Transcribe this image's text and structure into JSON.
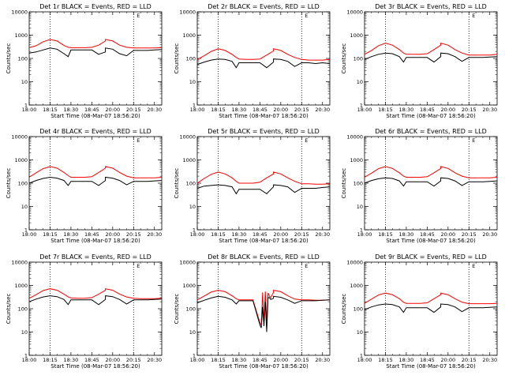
{
  "figure": {
    "panel_titles": [
      "Det 1r BLACK = Events, RED = LLD",
      "Det 2r BLACK = Events, RED = LLD",
      "Det 3r BLACK = Events, RED = LLD",
      "Det 4r BLACK = Events, RED = LLD",
      "Det 5r BLACK = Events, RED = LLD",
      "Det 6r BLACK = Events, RED = LLD",
      "Det 7r BLACK = Events, RED = LLD",
      "Det 8r BLACK = Events, RED = LLD",
      "Det 9r BLACK = Events, RED = LLD"
    ],
    "xlabel": "Start Time (08-Mar-07 18:56:20)",
    "ylabel": "Counts/sec",
    "x_tick_labels": [
      "18:00",
      "18:15",
      "18:30",
      "18:45",
      "20:00",
      "20:15",
      "20:30"
    ],
    "y_tick_labels": [
      "1",
      "10",
      "100",
      "1000",
      "10000"
    ],
    "corner_mark": "E",
    "colors": {
      "events": "#000000",
      "lld": "#ff0000",
      "axes": "#000000",
      "background": "#ffffff"
    }
  },
  "chart_data": [
    {
      "type": "line",
      "title": "Det 1r BLACK = Events, RED = LLD",
      "xlabel": "Start Time (08-Mar-07 18:56:20)",
      "ylabel": "Counts/sec",
      "x": [
        "18:00",
        "18:05",
        "18:10",
        "18:15",
        "18:20",
        "18:25",
        "18:28",
        "18:30",
        "18:35",
        "18:40",
        "18:45",
        "18:50",
        "18:55",
        "19:57",
        "20:00",
        "20:05",
        "20:10",
        "20:15",
        "20:20",
        "20:25",
        "20:30",
        "20:35"
      ],
      "ylim": [
        1,
        10000
      ],
      "yscale": "log",
      "vlines_at": [
        "18:15",
        "20:15"
      ],
      "series": [
        {
          "color": "#ff0000",
          "values": [
            290,
            350,
            520,
            650,
            560,
            360,
            300,
            290,
            290,
            290,
            300,
            370,
            560,
            650,
            560,
            370,
            300,
            280,
            280,
            280,
            280,
            290
          ]
        },
        {
          "color": "#000000",
          "values": [
            170,
            190,
            230,
            280,
            250,
            160,
            120,
            230,
            230,
            230,
            230,
            150,
            190,
            280,
            250,
            160,
            130,
            220,
            220,
            220,
            230,
            240
          ]
        }
      ]
    },
    {
      "type": "line",
      "title": "Det 2r BLACK = Events, RED = LLD",
      "xlabel": "Start Time (08-Mar-07 18:56:20)",
      "ylabel": "Counts/sec",
      "x": [
        "18:00",
        "18:05",
        "18:10",
        "18:15",
        "18:20",
        "18:25",
        "18:28",
        "18:30",
        "18:35",
        "18:40",
        "18:45",
        "18:50",
        "18:55",
        "19:57",
        "20:00",
        "20:05",
        "20:10",
        "20:15",
        "20:20",
        "20:25",
        "20:30",
        "20:35"
      ],
      "ylim": [
        1,
        10000
      ],
      "yscale": "log",
      "vlines_at": [
        "18:15",
        "20:15"
      ],
      "series": [
        {
          "color": "#ff0000",
          "values": [
            90,
            130,
            200,
            260,
            220,
            150,
            110,
            95,
            90,
            90,
            95,
            140,
            210,
            260,
            220,
            150,
            110,
            90,
            85,
            85,
            85,
            90
          ]
        },
        {
          "color": "#000000",
          "values": [
            55,
            70,
            85,
            95,
            90,
            75,
            40,
            65,
            65,
            65,
            65,
            40,
            70,
            95,
            90,
            75,
            45,
            65,
            65,
            60,
            65,
            60
          ]
        }
      ]
    },
    {
      "type": "line",
      "title": "Det 3r BLACK = Events, RED = LLD",
      "xlabel": "Start Time (08-Mar-07 18:56:20)",
      "ylabel": "Counts/sec",
      "x": [
        "18:00",
        "18:05",
        "18:10",
        "18:15",
        "18:20",
        "18:25",
        "18:28",
        "18:30",
        "18:35",
        "18:40",
        "18:45",
        "18:50",
        "18:55",
        "19:57",
        "20:00",
        "20:05",
        "20:10",
        "20:15",
        "20:20",
        "20:25",
        "20:30",
        "20:35"
      ],
      "ylim": [
        1,
        10000
      ],
      "yscale": "log",
      "vlines_at": [
        "18:15",
        "20:15"
      ],
      "series": [
        {
          "color": "#ff0000",
          "values": [
            150,
            220,
            350,
            450,
            370,
            240,
            170,
            150,
            150,
            150,
            160,
            240,
            370,
            450,
            370,
            240,
            170,
            140,
            140,
            140,
            140,
            150
          ]
        },
        {
          "color": "#000000",
          "values": [
            90,
            120,
            150,
            170,
            160,
            120,
            70,
            110,
            110,
            110,
            110,
            70,
            120,
            170,
            160,
            120,
            75,
            110,
            110,
            110,
            115,
            120
          ]
        }
      ]
    },
    {
      "type": "line",
      "title": "Det 4r BLACK = Events, RED = LLD",
      "xlabel": "Start Time (08-Mar-07 18:56:20)",
      "ylabel": "Counts/sec",
      "x": [
        "18:00",
        "18:05",
        "18:10",
        "18:15",
        "18:20",
        "18:25",
        "18:28",
        "18:30",
        "18:35",
        "18:40",
        "18:45",
        "18:50",
        "18:55",
        "19:57",
        "20:00",
        "20:05",
        "20:10",
        "20:15",
        "20:20",
        "20:25",
        "20:30",
        "20:35"
      ],
      "ylim": [
        1,
        10000
      ],
      "yscale": "log",
      "vlines_at": [
        "18:15",
        "20:15"
      ],
      "series": [
        {
          "color": "#ff0000",
          "values": [
            180,
            280,
            420,
            520,
            440,
            290,
            210,
            180,
            180,
            180,
            190,
            290,
            440,
            520,
            440,
            290,
            200,
            170,
            170,
            170,
            170,
            180
          ]
        },
        {
          "color": "#000000",
          "values": [
            100,
            130,
            160,
            180,
            165,
            130,
            80,
            120,
            120,
            120,
            120,
            80,
            130,
            180,
            165,
            130,
            85,
            120,
            120,
            120,
            125,
            130
          ]
        }
      ]
    },
    {
      "type": "line",
      "title": "Det 5r BLACK = Events, RED = LLD",
      "xlabel": "Start Time (08-Mar-07 18:56:20)",
      "ylabel": "Counts/sec",
      "x": [
        "18:00",
        "18:05",
        "18:10",
        "18:15",
        "18:20",
        "18:25",
        "18:28",
        "18:30",
        "18:35",
        "18:40",
        "18:45",
        "18:50",
        "18:55",
        "19:57",
        "20:00",
        "20:05",
        "20:10",
        "20:15",
        "20:20",
        "20:25",
        "20:30",
        "20:35"
      ],
      "ylim": [
        1,
        10000
      ],
      "yscale": "log",
      "vlines_at": [
        "18:15",
        "20:15"
      ],
      "series": [
        {
          "color": "#ff0000",
          "values": [
            100,
            160,
            240,
            300,
            250,
            170,
            120,
            100,
            100,
            100,
            110,
            170,
            250,
            300,
            250,
            170,
            120,
            95,
            95,
            90,
            90,
            95
          ]
        },
        {
          "color": "#000000",
          "values": [
            60,
            75,
            80,
            85,
            80,
            70,
            35,
            55,
            55,
            55,
            55,
            35,
            70,
            85,
            80,
            70,
            40,
            60,
            60,
            60,
            65,
            70
          ]
        }
      ]
    },
    {
      "type": "line",
      "title": "Det 6r BLACK = Events, RED = LLD",
      "xlabel": "Start Time (08-Mar-07 18:56:20)",
      "ylabel": "Counts/sec",
      "x": [
        "18:00",
        "18:05",
        "18:10",
        "18:15",
        "18:20",
        "18:25",
        "18:28",
        "18:30",
        "18:35",
        "18:40",
        "18:45",
        "18:50",
        "18:55",
        "19:57",
        "20:00",
        "20:05",
        "20:10",
        "20:15",
        "20:20",
        "20:25",
        "20:30",
        "20:35"
      ],
      "ylim": [
        1,
        10000
      ],
      "yscale": "log",
      "vlines_at": [
        "18:15",
        "20:15"
      ],
      "series": [
        {
          "color": "#ff0000",
          "values": [
            180,
            270,
            420,
            520,
            430,
            280,
            200,
            180,
            180,
            180,
            190,
            280,
            430,
            520,
            430,
            280,
            200,
            170,
            170,
            170,
            170,
            180
          ]
        },
        {
          "color": "#000000",
          "values": [
            100,
            130,
            155,
            170,
            160,
            125,
            75,
            115,
            115,
            115,
            115,
            75,
            125,
            170,
            160,
            125,
            80,
            115,
            115,
            115,
            120,
            125
          ]
        }
      ]
    },
    {
      "type": "line",
      "title": "Det 7r BLACK = Events, RED = LLD",
      "xlabel": "Start Time (08-Mar-07 18:56:20)",
      "ylabel": "Counts/sec",
      "x": [
        "18:00",
        "18:05",
        "18:10",
        "18:15",
        "18:20",
        "18:25",
        "18:28",
        "18:30",
        "18:35",
        "18:40",
        "18:45",
        "18:50",
        "18:55",
        "19:57",
        "20:00",
        "20:05",
        "20:10",
        "20:15",
        "20:20",
        "20:25",
        "20:30",
        "20:35"
      ],
      "ylim": [
        1,
        10000
      ],
      "yscale": "log",
      "vlines_at": [
        "18:15",
        "20:15"
      ],
      "series": [
        {
          "color": "#ff0000",
          "values": [
            280,
            400,
            600,
            720,
            620,
            420,
            320,
            290,
            280,
            280,
            300,
            420,
            620,
            720,
            620,
            420,
            320,
            280,
            270,
            270,
            270,
            280
          ]
        },
        {
          "color": "#000000",
          "values": [
            200,
            260,
            320,
            360,
            330,
            250,
            150,
            240,
            240,
            240,
            240,
            150,
            250,
            360,
            330,
            250,
            160,
            240,
            240,
            240,
            250,
            260
          ]
        }
      ]
    },
    {
      "type": "line",
      "title": "Det 8r BLACK = Events, RED = LLD",
      "xlabel": "Start Time (08-Mar-07 18:56:20)",
      "ylabel": "Counts/sec",
      "x": [
        "18:00",
        "18:05",
        "18:10",
        "18:15",
        "18:20",
        "18:25",
        "18:28",
        "18:30",
        "18:35",
        "18:40",
        "18:45",
        "18:46",
        "18:47",
        "18:48",
        "18:49",
        "18:50",
        "18:51",
        "18:52",
        "18:53",
        "18:55",
        "19:57",
        "20:00",
        "20:05",
        "20:10",
        "20:15",
        "20:20",
        "20:25",
        "20:30",
        "20:35"
      ],
      "ylim": [
        1,
        10000
      ],
      "yscale": "log",
      "vlines_at": [
        "18:15",
        "20:15"
      ],
      "series": [
        {
          "color": "#ff0000",
          "values": [
            240,
            350,
            520,
            620,
            540,
            360,
            270,
            240,
            240,
            240,
            25,
            20,
            500,
            25,
            550,
            30,
            480,
            350,
            300,
            500,
            620,
            540,
            360,
            260,
            240,
            240,
            230,
            230,
            240
          ]
        },
        {
          "color": "#000000",
          "values": [
            180,
            230,
            290,
            340,
            310,
            240,
            160,
            220,
            220,
            220,
            20,
            15,
            120,
            18,
            200,
            10,
            300,
            300,
            250,
            280,
            340,
            310,
            240,
            170,
            220,
            220,
            220,
            230,
            240
          ]
        }
      ]
    },
    {
      "type": "line",
      "title": "Det 9r BLACK = Events, RED = LLD",
      "xlabel": "Start Time (08-Mar-07 18:56:20)",
      "ylabel": "Counts/sec",
      "x": [
        "18:00",
        "18:05",
        "18:10",
        "18:15",
        "18:20",
        "18:25",
        "18:28",
        "18:30",
        "18:35",
        "18:40",
        "18:45",
        "18:50",
        "18:55",
        "19:57",
        "20:00",
        "20:05",
        "20:10",
        "20:15",
        "20:20",
        "20:25",
        "20:30",
        "20:35"
      ],
      "ylim": [
        1,
        10000
      ],
      "yscale": "log",
      "vlines_at": [
        "18:15",
        "20:15"
      ],
      "series": [
        {
          "color": "#ff0000",
          "values": [
            170,
            260,
            390,
            470,
            400,
            270,
            190,
            170,
            170,
            170,
            180,
            270,
            400,
            470,
            400,
            270,
            190,
            165,
            165,
            165,
            165,
            170
          ]
        },
        {
          "color": "#000000",
          "values": [
            90,
            120,
            145,
            160,
            150,
            120,
            70,
            110,
            110,
            110,
            110,
            70,
            120,
            160,
            150,
            120,
            75,
            110,
            110,
            110,
            115,
            120
          ]
        }
      ]
    }
  ]
}
